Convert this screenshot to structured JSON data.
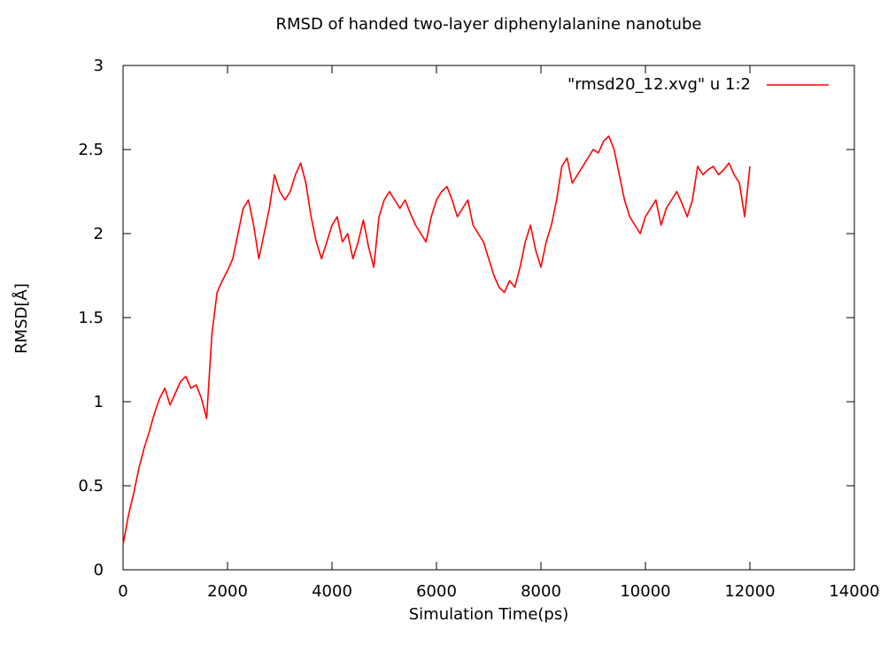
{
  "chart_data": {
    "type": "line",
    "title": "RMSD of handed two-layer diphenylalanine nanotube",
    "xlabel": "Simulation Time(ps)",
    "ylabel": "RMSD[Å]",
    "xlim": [
      0,
      14000
    ],
    "ylim": [
      0,
      3
    ],
    "x_ticks": [
      "0",
      "2000",
      "4000",
      "6000",
      "8000",
      "10000",
      "12000",
      "14000"
    ],
    "y_ticks": [
      "0",
      "0.5",
      "1",
      "1.5",
      "2",
      "2.5",
      "3"
    ],
    "grid": false,
    "legend_position": "top-right",
    "series": [
      {
        "name": "\"rmsd20_12.xvg\" u 1:2",
        "color": "#ff0000",
        "x": [
          0,
          100,
          200,
          300,
          400,
          500,
          600,
          700,
          800,
          900,
          1000,
          1100,
          1200,
          1300,
          1400,
          1500,
          1600,
          1700,
          1800,
          1900,
          2000,
          2100,
          2200,
          2300,
          2400,
          2500,
          2600,
          2700,
          2800,
          2900,
          3000,
          3100,
          3200,
          3300,
          3400,
          3500,
          3600,
          3700,
          3800,
          3900,
          4000,
          4100,
          4200,
          4300,
          4400,
          4500,
          4600,
          4700,
          4800,
          4900,
          5000,
          5100,
          5200,
          5300,
          5400,
          5500,
          5600,
          5700,
          5800,
          5900,
          6000,
          6100,
          6200,
          6300,
          6400,
          6500,
          6600,
          6700,
          6800,
          6900,
          7000,
          7100,
          7200,
          7300,
          7400,
          7500,
          7600,
          7700,
          7800,
          7900,
          8000,
          8100,
          8200,
          8300,
          8400,
          8500,
          8600,
          8700,
          8800,
          8900,
          9000,
          9100,
          9200,
          9300,
          9400,
          9500,
          9600,
          9700,
          9800,
          9900,
          10000,
          10100,
          10200,
          10300,
          10400,
          10500,
          10600,
          10700,
          10800,
          10900,
          11000,
          11100,
          11200,
          11300,
          11400,
          11500,
          11600,
          11700,
          11800,
          11900,
          12000
        ],
        "y": [
          0.15,
          0.32,
          0.45,
          0.6,
          0.72,
          0.82,
          0.93,
          1.02,
          1.08,
          0.98,
          1.05,
          1.12,
          1.15,
          1.08,
          1.1,
          1.02,
          0.9,
          1.4,
          1.65,
          1.72,
          1.78,
          1.85,
          2.0,
          2.15,
          2.2,
          2.05,
          1.85,
          2.0,
          2.15,
          2.35,
          2.25,
          2.2,
          2.25,
          2.35,
          2.42,
          2.3,
          2.1,
          1.95,
          1.85,
          1.95,
          2.05,
          2.1,
          1.95,
          2.0,
          1.85,
          1.95,
          2.08,
          1.92,
          1.8,
          2.1,
          2.2,
          2.25,
          2.2,
          2.15,
          2.2,
          2.12,
          2.05,
          2.0,
          1.95,
          2.1,
          2.2,
          2.25,
          2.28,
          2.2,
          2.1,
          2.15,
          2.2,
          2.05,
          2.0,
          1.95,
          1.85,
          1.75,
          1.68,
          1.65,
          1.72,
          1.68,
          1.8,
          1.95,
          2.05,
          1.9,
          1.8,
          1.95,
          2.05,
          2.2,
          2.4,
          2.45,
          2.3,
          2.35,
          2.4,
          2.45,
          2.5,
          2.48,
          2.55,
          2.58,
          2.5,
          2.35,
          2.2,
          2.1,
          2.05,
          2.0,
          2.1,
          2.15,
          2.2,
          2.05,
          2.15,
          2.2,
          2.25,
          2.18,
          2.1,
          2.2,
          2.4,
          2.35,
          2.38,
          2.4,
          2.35,
          2.38,
          2.42,
          2.35,
          2.3,
          2.1,
          2.4
        ]
      }
    ]
  }
}
